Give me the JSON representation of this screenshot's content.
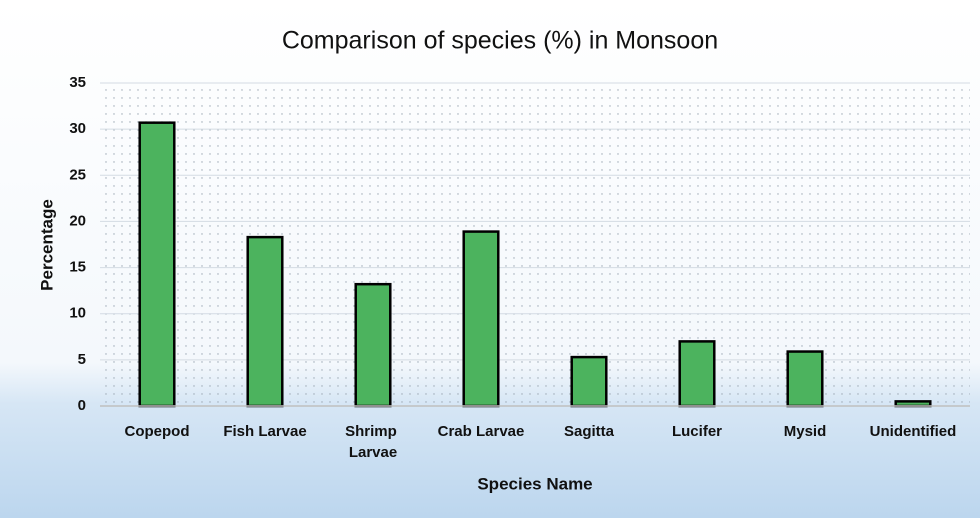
{
  "chart_data": {
    "type": "bar",
    "title": "Comparison of species (%) in Monsoon",
    "x_label": "Species Name",
    "y_label": "Percentage",
    "categories": [
      "Copepod",
      "Fish Larvae",
      "Shrimp Larvae",
      "Crab Larvae",
      "Sagitta",
      "Lucifer",
      "Mysid",
      "Unidentified"
    ],
    "values": [
      30.7,
      18.3,
      13.2,
      18.9,
      5.3,
      7.0,
      5.9,
      0.5
    ],
    "color": "#4cb35e",
    "ylim": [
      0,
      35
    ],
    "yticks": [
      0,
      5,
      10,
      15,
      20,
      25,
      30,
      35
    ],
    "grid": true
  }
}
